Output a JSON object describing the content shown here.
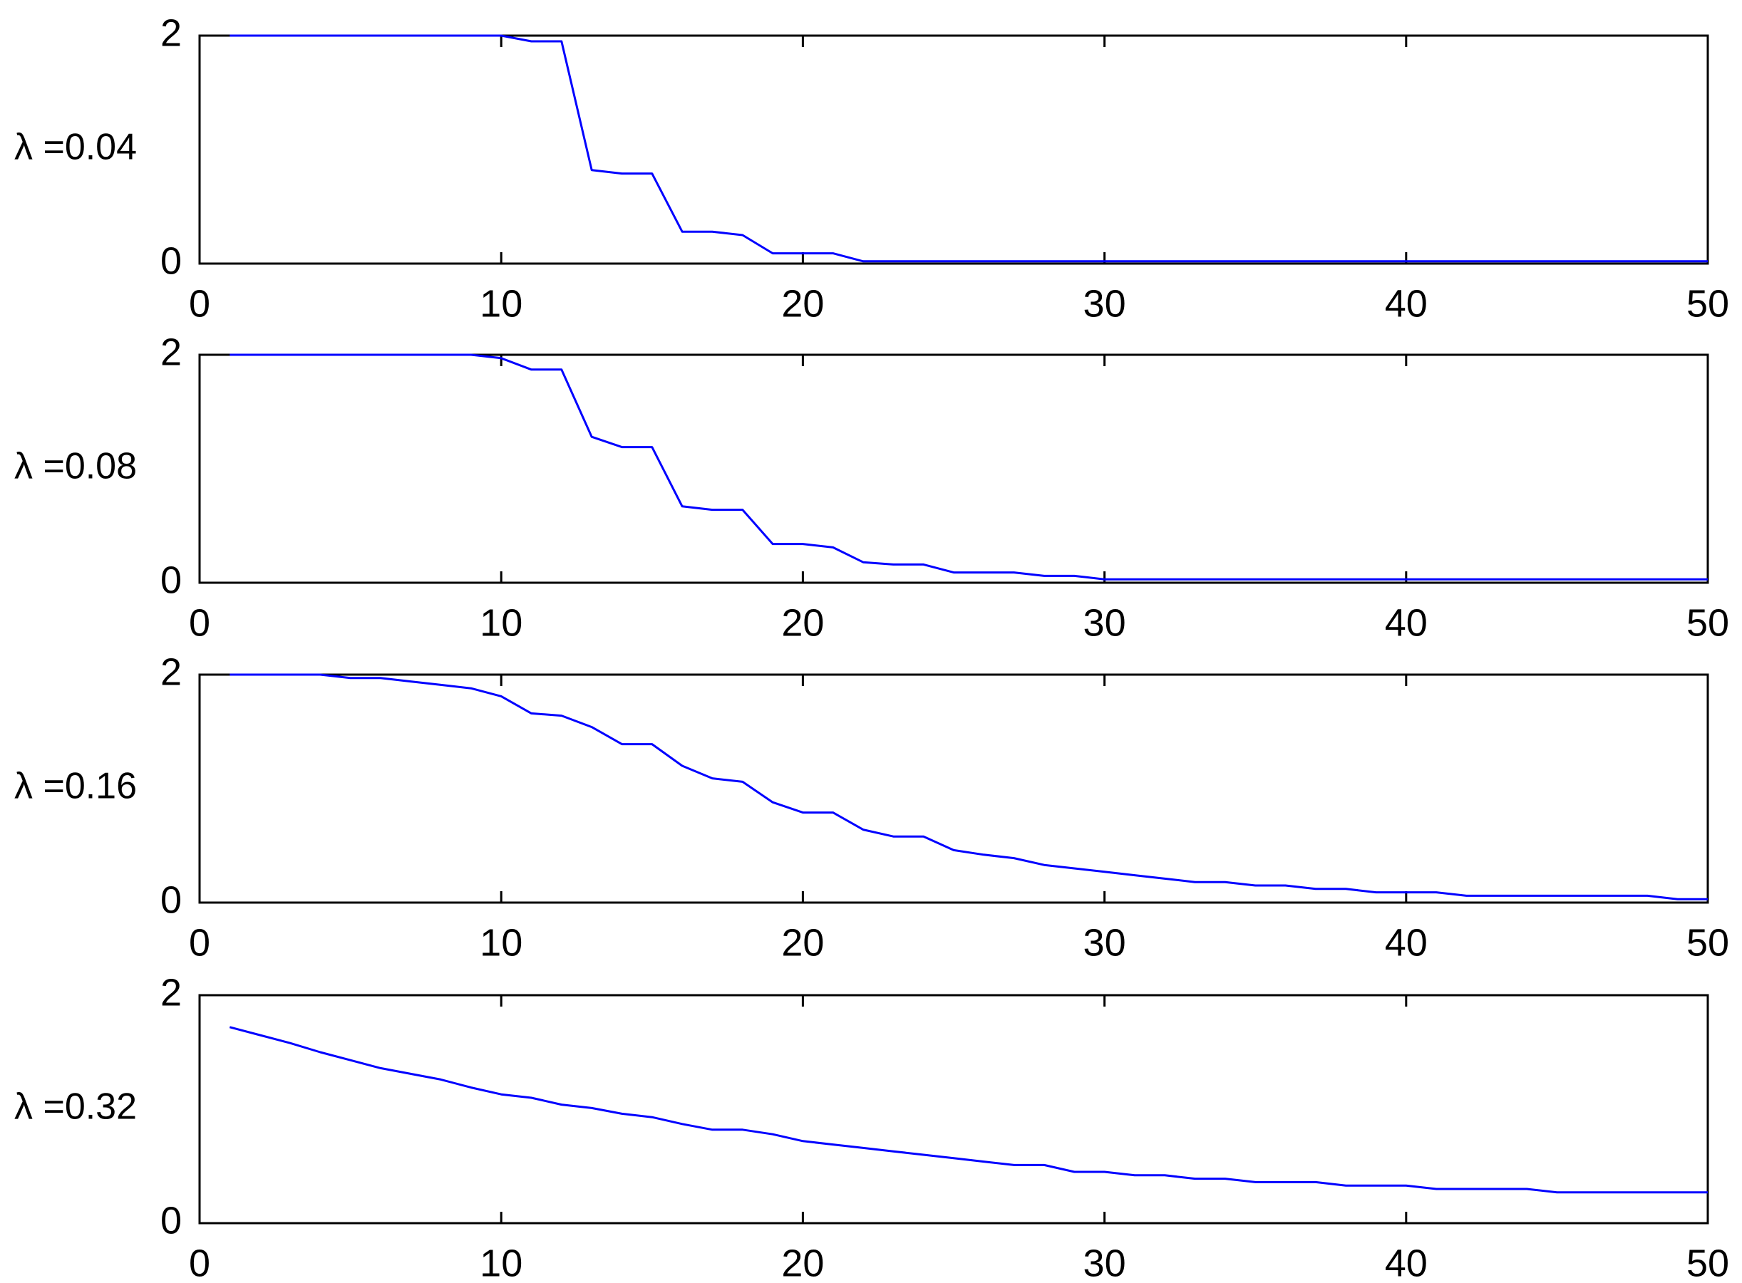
{
  "chart_data": [
    {
      "type": "line",
      "ylabel": "λ =0.04",
      "xlim": [
        0,
        50
      ],
      "ylim": [
        0,
        2
      ],
      "xticks": [
        "0",
        "10",
        "20",
        "30",
        "40",
        "50"
      ],
      "yticks": [
        "0",
        "2"
      ],
      "grid": false,
      "line_color": "#0000ff",
      "x": [
        1,
        2,
        3,
        4,
        5,
        6,
        7,
        8,
        9,
        10,
        11,
        12,
        13,
        14,
        15,
        16,
        17,
        18,
        19,
        20,
        21,
        22,
        23,
        24,
        25,
        26,
        27,
        28,
        29,
        30,
        31,
        32,
        33,
        34,
        35,
        36,
        37,
        38,
        39,
        40,
        41,
        42,
        43,
        44,
        45,
        46,
        47,
        48,
        49,
        50
      ],
      "values": [
        2,
        2,
        2,
        2,
        2,
        2,
        2,
        2,
        2,
        2,
        1.95,
        1.95,
        0.82,
        0.79,
        0.79,
        0.28,
        0.28,
        0.25,
        0.09,
        0.09,
        0.09,
        0.02,
        0.02,
        0.02,
        0.02,
        0.02,
        0.02,
        0.02,
        0.02,
        0.02,
        0.02,
        0.02,
        0.02,
        0.02,
        0.02,
        0.02,
        0.02,
        0.02,
        0.02,
        0.02,
        0.02,
        0.02,
        0.02,
        0.02,
        0.02,
        0.02,
        0.02,
        0.02,
        0.02,
        0.02
      ]
    },
    {
      "type": "line",
      "ylabel": "λ =0.08",
      "xlim": [
        0,
        50
      ],
      "ylim": [
        0,
        2
      ],
      "xticks": [
        "0",
        "10",
        "20",
        "30",
        "40",
        "50"
      ],
      "yticks": [
        "0",
        "2"
      ],
      "grid": false,
      "line_color": "#0000ff",
      "x": [
        1,
        2,
        3,
        4,
        5,
        6,
        7,
        8,
        9,
        10,
        11,
        12,
        13,
        14,
        15,
        16,
        17,
        18,
        19,
        20,
        21,
        22,
        23,
        24,
        25,
        26,
        27,
        28,
        29,
        30,
        31,
        32,
        33,
        34,
        35,
        36,
        37,
        38,
        39,
        40,
        41,
        42,
        43,
        44,
        45,
        46,
        47,
        48,
        49,
        50
      ],
      "values": [
        2,
        2,
        2,
        2,
        2,
        2,
        2,
        2,
        2,
        1.97,
        1.87,
        1.87,
        1.28,
        1.19,
        1.19,
        0.67,
        0.64,
        0.64,
        0.34,
        0.34,
        0.31,
        0.18,
        0.16,
        0.16,
        0.09,
        0.09,
        0.09,
        0.06,
        0.06,
        0.03,
        0.03,
        0.03,
        0.03,
        0.03,
        0.03,
        0.03,
        0.03,
        0.03,
        0.03,
        0.03,
        0.03,
        0.03,
        0.03,
        0.03,
        0.03,
        0.03,
        0.03,
        0.03,
        0.03,
        0.03
      ]
    },
    {
      "type": "line",
      "ylabel": "λ =0.16",
      "xlim": [
        0,
        50
      ],
      "ylim": [
        0,
        2
      ],
      "xticks": [
        "0",
        "10",
        "20",
        "30",
        "40",
        "50"
      ],
      "yticks": [
        "0",
        "2"
      ],
      "grid": false,
      "line_color": "#0000ff",
      "x": [
        1,
        2,
        3,
        4,
        5,
        6,
        7,
        8,
        9,
        10,
        11,
        12,
        13,
        14,
        15,
        16,
        17,
        18,
        19,
        20,
        21,
        22,
        23,
        24,
        25,
        26,
        27,
        28,
        29,
        30,
        31,
        32,
        33,
        34,
        35,
        36,
        37,
        38,
        39,
        40,
        41,
        42,
        43,
        44,
        45,
        46,
        47,
        48,
        49,
        50
      ],
      "values": [
        2,
        2,
        2,
        2,
        1.97,
        1.97,
        1.94,
        1.91,
        1.88,
        1.81,
        1.66,
        1.64,
        1.54,
        1.39,
        1.39,
        1.2,
        1.09,
        1.06,
        0.88,
        0.79,
        0.79,
        0.64,
        0.58,
        0.58,
        0.46,
        0.42,
        0.39,
        0.33,
        0.3,
        0.27,
        0.24,
        0.21,
        0.18,
        0.18,
        0.15,
        0.15,
        0.12,
        0.12,
        0.09,
        0.09,
        0.09,
        0.06,
        0.06,
        0.06,
        0.06,
        0.06,
        0.06,
        0.06,
        0.03,
        0.03
      ]
    },
    {
      "type": "line",
      "ylabel": "λ =0.32",
      "xlim": [
        0,
        50
      ],
      "ylim": [
        0,
        2
      ],
      "xticks": [
        "0",
        "10",
        "20",
        "30",
        "40",
        "50"
      ],
      "yticks": [
        "0",
        "2"
      ],
      "grid": false,
      "line_color": "#0000ff",
      "x": [
        1,
        2,
        3,
        4,
        5,
        6,
        7,
        8,
        9,
        10,
        11,
        12,
        13,
        14,
        15,
        16,
        17,
        18,
        19,
        20,
        21,
        22,
        23,
        24,
        25,
        26,
        27,
        28,
        29,
        30,
        31,
        32,
        33,
        34,
        35,
        36,
        37,
        38,
        39,
        40,
        41,
        42,
        43,
        44,
        45,
        46,
        47,
        48,
        49,
        50
      ],
      "values": [
        1.72,
        1.65,
        1.58,
        1.5,
        1.43,
        1.36,
        1.31,
        1.26,
        1.19,
        1.13,
        1.1,
        1.04,
        1.01,
        0.96,
        0.93,
        0.87,
        0.82,
        0.82,
        0.78,
        0.72,
        0.69,
        0.66,
        0.63,
        0.6,
        0.57,
        0.54,
        0.51,
        0.51,
        0.45,
        0.45,
        0.42,
        0.42,
        0.39,
        0.39,
        0.36,
        0.36,
        0.36,
        0.33,
        0.33,
        0.33,
        0.3,
        0.3,
        0.3,
        0.3,
        0.27,
        0.27,
        0.27,
        0.27,
        0.27,
        0.27
      ]
    }
  ]
}
